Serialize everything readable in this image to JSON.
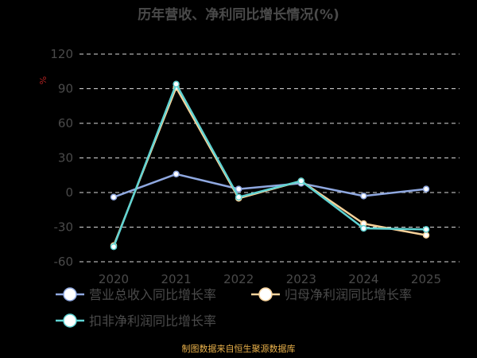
{
  "chart_data": {
    "type": "line",
    "title": "历年营收、净利同比增长情况(%)",
    "ylabel": "%",
    "xlabel": "",
    "categories": [
      "2020",
      "2021",
      "2022",
      "2023",
      "2024",
      "2025"
    ],
    "y_ticks": [
      120,
      90,
      60,
      30,
      0,
      -30,
      -60
    ],
    "ylim": [
      -60,
      120
    ],
    "grid": true,
    "legend_position": "bottom",
    "series": [
      {
        "name": "营业总收入同比增长率",
        "color": "#8fa8e0",
        "values": [
          -4,
          16,
          3,
          8,
          -3,
          3
        ]
      },
      {
        "name": "归母净利润同比增长率",
        "color": "#f7d29a",
        "values": [
          -46,
          91,
          -5,
          10,
          -27,
          -37
        ]
      },
      {
        "name": "扣非净利润同比增长率",
        "color": "#5fd3d3",
        "values": [
          -47,
          94,
          -4,
          10,
          -31,
          -32
        ]
      }
    ]
  },
  "footer": {
    "source": "制图数据来自恒生聚源数据库"
  }
}
